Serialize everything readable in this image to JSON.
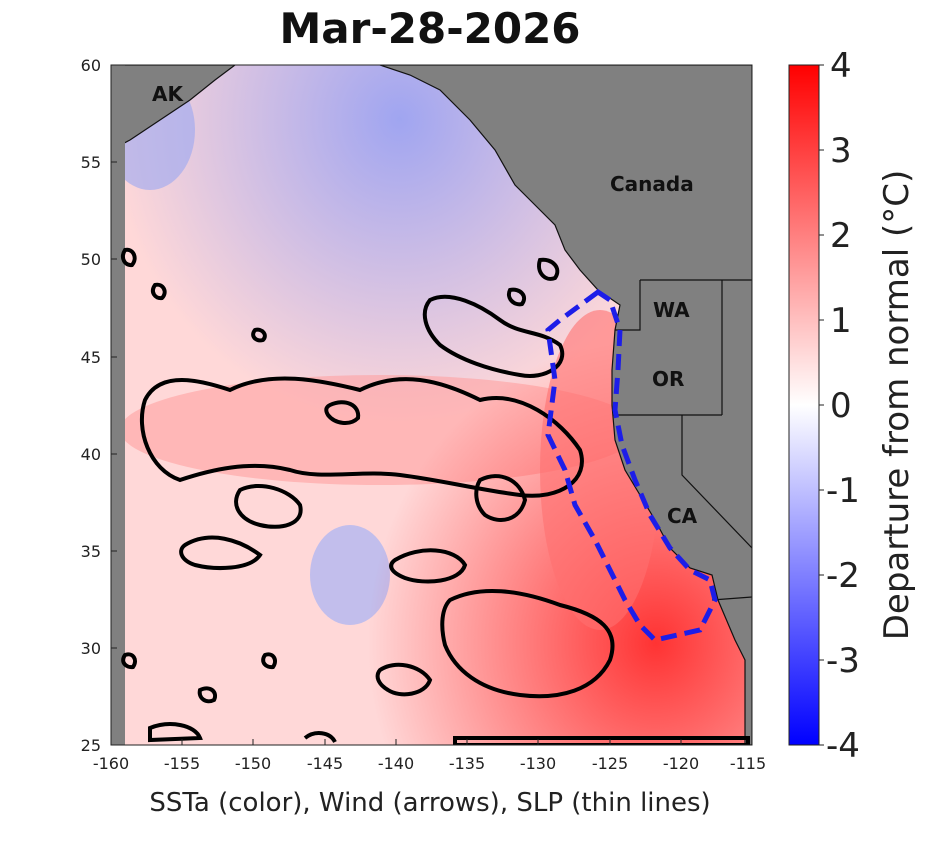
{
  "title": "Mar-28-2026",
  "xlabel": "SSTa (color), Wind (arrows), SLP (thin lines)",
  "colorbar": {
    "label": "Departure from normal (°C)",
    "ticks": [
      "4",
      "3",
      "2",
      "1",
      "0",
      "-1",
      "-2",
      "-3",
      "-4"
    ],
    "range": [
      -4,
      4
    ],
    "colors": {
      "min": "#0000ff",
      "mid": "#ffffff",
      "max": "#ff0000"
    }
  },
  "map": {
    "lon_range": [
      -160,
      -115
    ],
    "lat_range": [
      25,
      60
    ],
    "x_ticks": [
      "-160",
      "-155",
      "-150",
      "-145",
      "-140",
      "-135",
      "-130",
      "-125",
      "-120",
      "-115"
    ],
    "y_ticks": [
      "60",
      "55",
      "50",
      "45",
      "40",
      "35",
      "30",
      "25"
    ],
    "land_color": "#808080",
    "regions": {
      "ak": "AK",
      "canada": "Canada",
      "wa": "WA",
      "or": "OR",
      "ca": "CA"
    }
  }
}
